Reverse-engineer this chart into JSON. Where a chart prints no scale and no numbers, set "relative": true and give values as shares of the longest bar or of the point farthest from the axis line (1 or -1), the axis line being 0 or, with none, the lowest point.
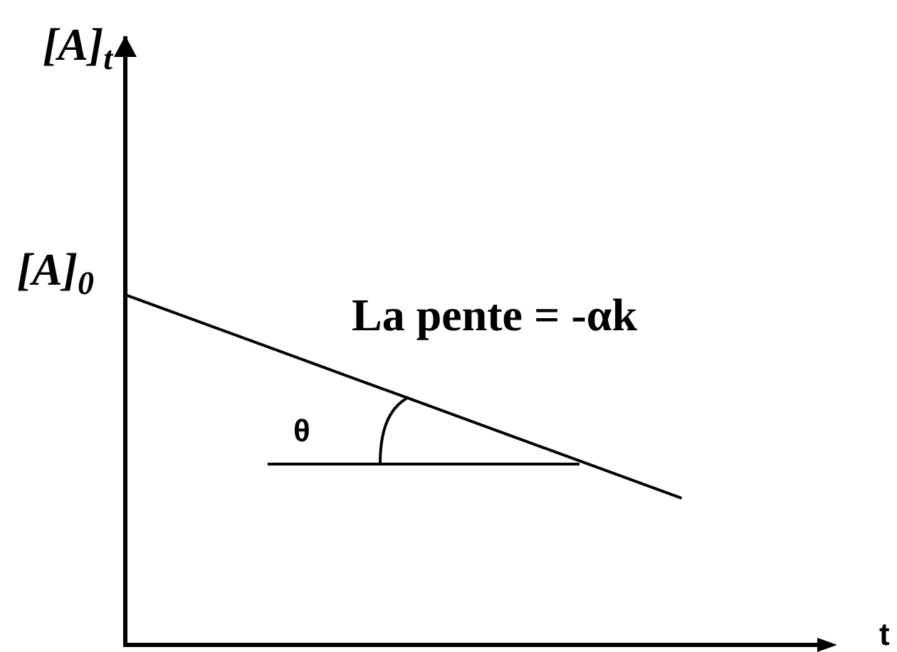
{
  "chart_data": {
    "type": "line",
    "relative": true,
    "ylabel": "[A]$_{t}$",
    "xlabel": "t",
    "categories": [
      null,
      null,
      null,
      null,
      null,
      null
    ],
    "series": [
      {
        "color": "#000000",
        "values": [
          1,
          0.855,
          0.71,
          0.565,
          0.42,
          null
        ]
      }
    ],
    "annotations": [
      "[A]$_{0}$",
      "La pente = -αk",
      "θ"
    ],
    "marker": "none"
  }
}
